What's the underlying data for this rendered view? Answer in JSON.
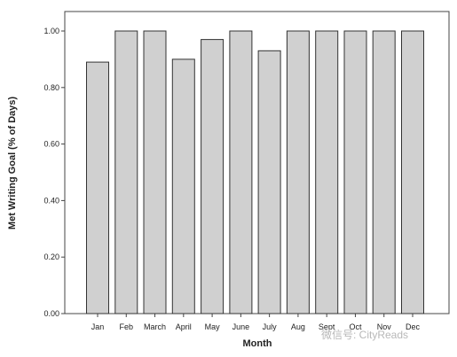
{
  "chart_data": {
    "type": "bar",
    "categories": [
      "Jan",
      "Feb",
      "March",
      "April",
      "May",
      "June",
      "July",
      "Aug",
      "Sept",
      "Oct",
      "Nov",
      "Dec"
    ],
    "values": [
      0.89,
      1.0,
      1.0,
      0.9,
      0.97,
      1.0,
      0.93,
      1.0,
      1.0,
      1.0,
      1.0,
      1.0
    ],
    "title": "",
    "xlabel": "Month",
    "ylabel": "Met Writing Goal (% of Days)",
    "ylim": [
      0,
      1.0
    ],
    "yticks": [
      "0.00",
      "0.20",
      "0.40",
      "0.60",
      "0.80",
      "1.00"
    ],
    "grid": false,
    "legend": "none",
    "bar_color": "#d0d0d0",
    "bar_edge_color": "#333333"
  },
  "watermark": {
    "text": "微信号: CityReads"
  }
}
